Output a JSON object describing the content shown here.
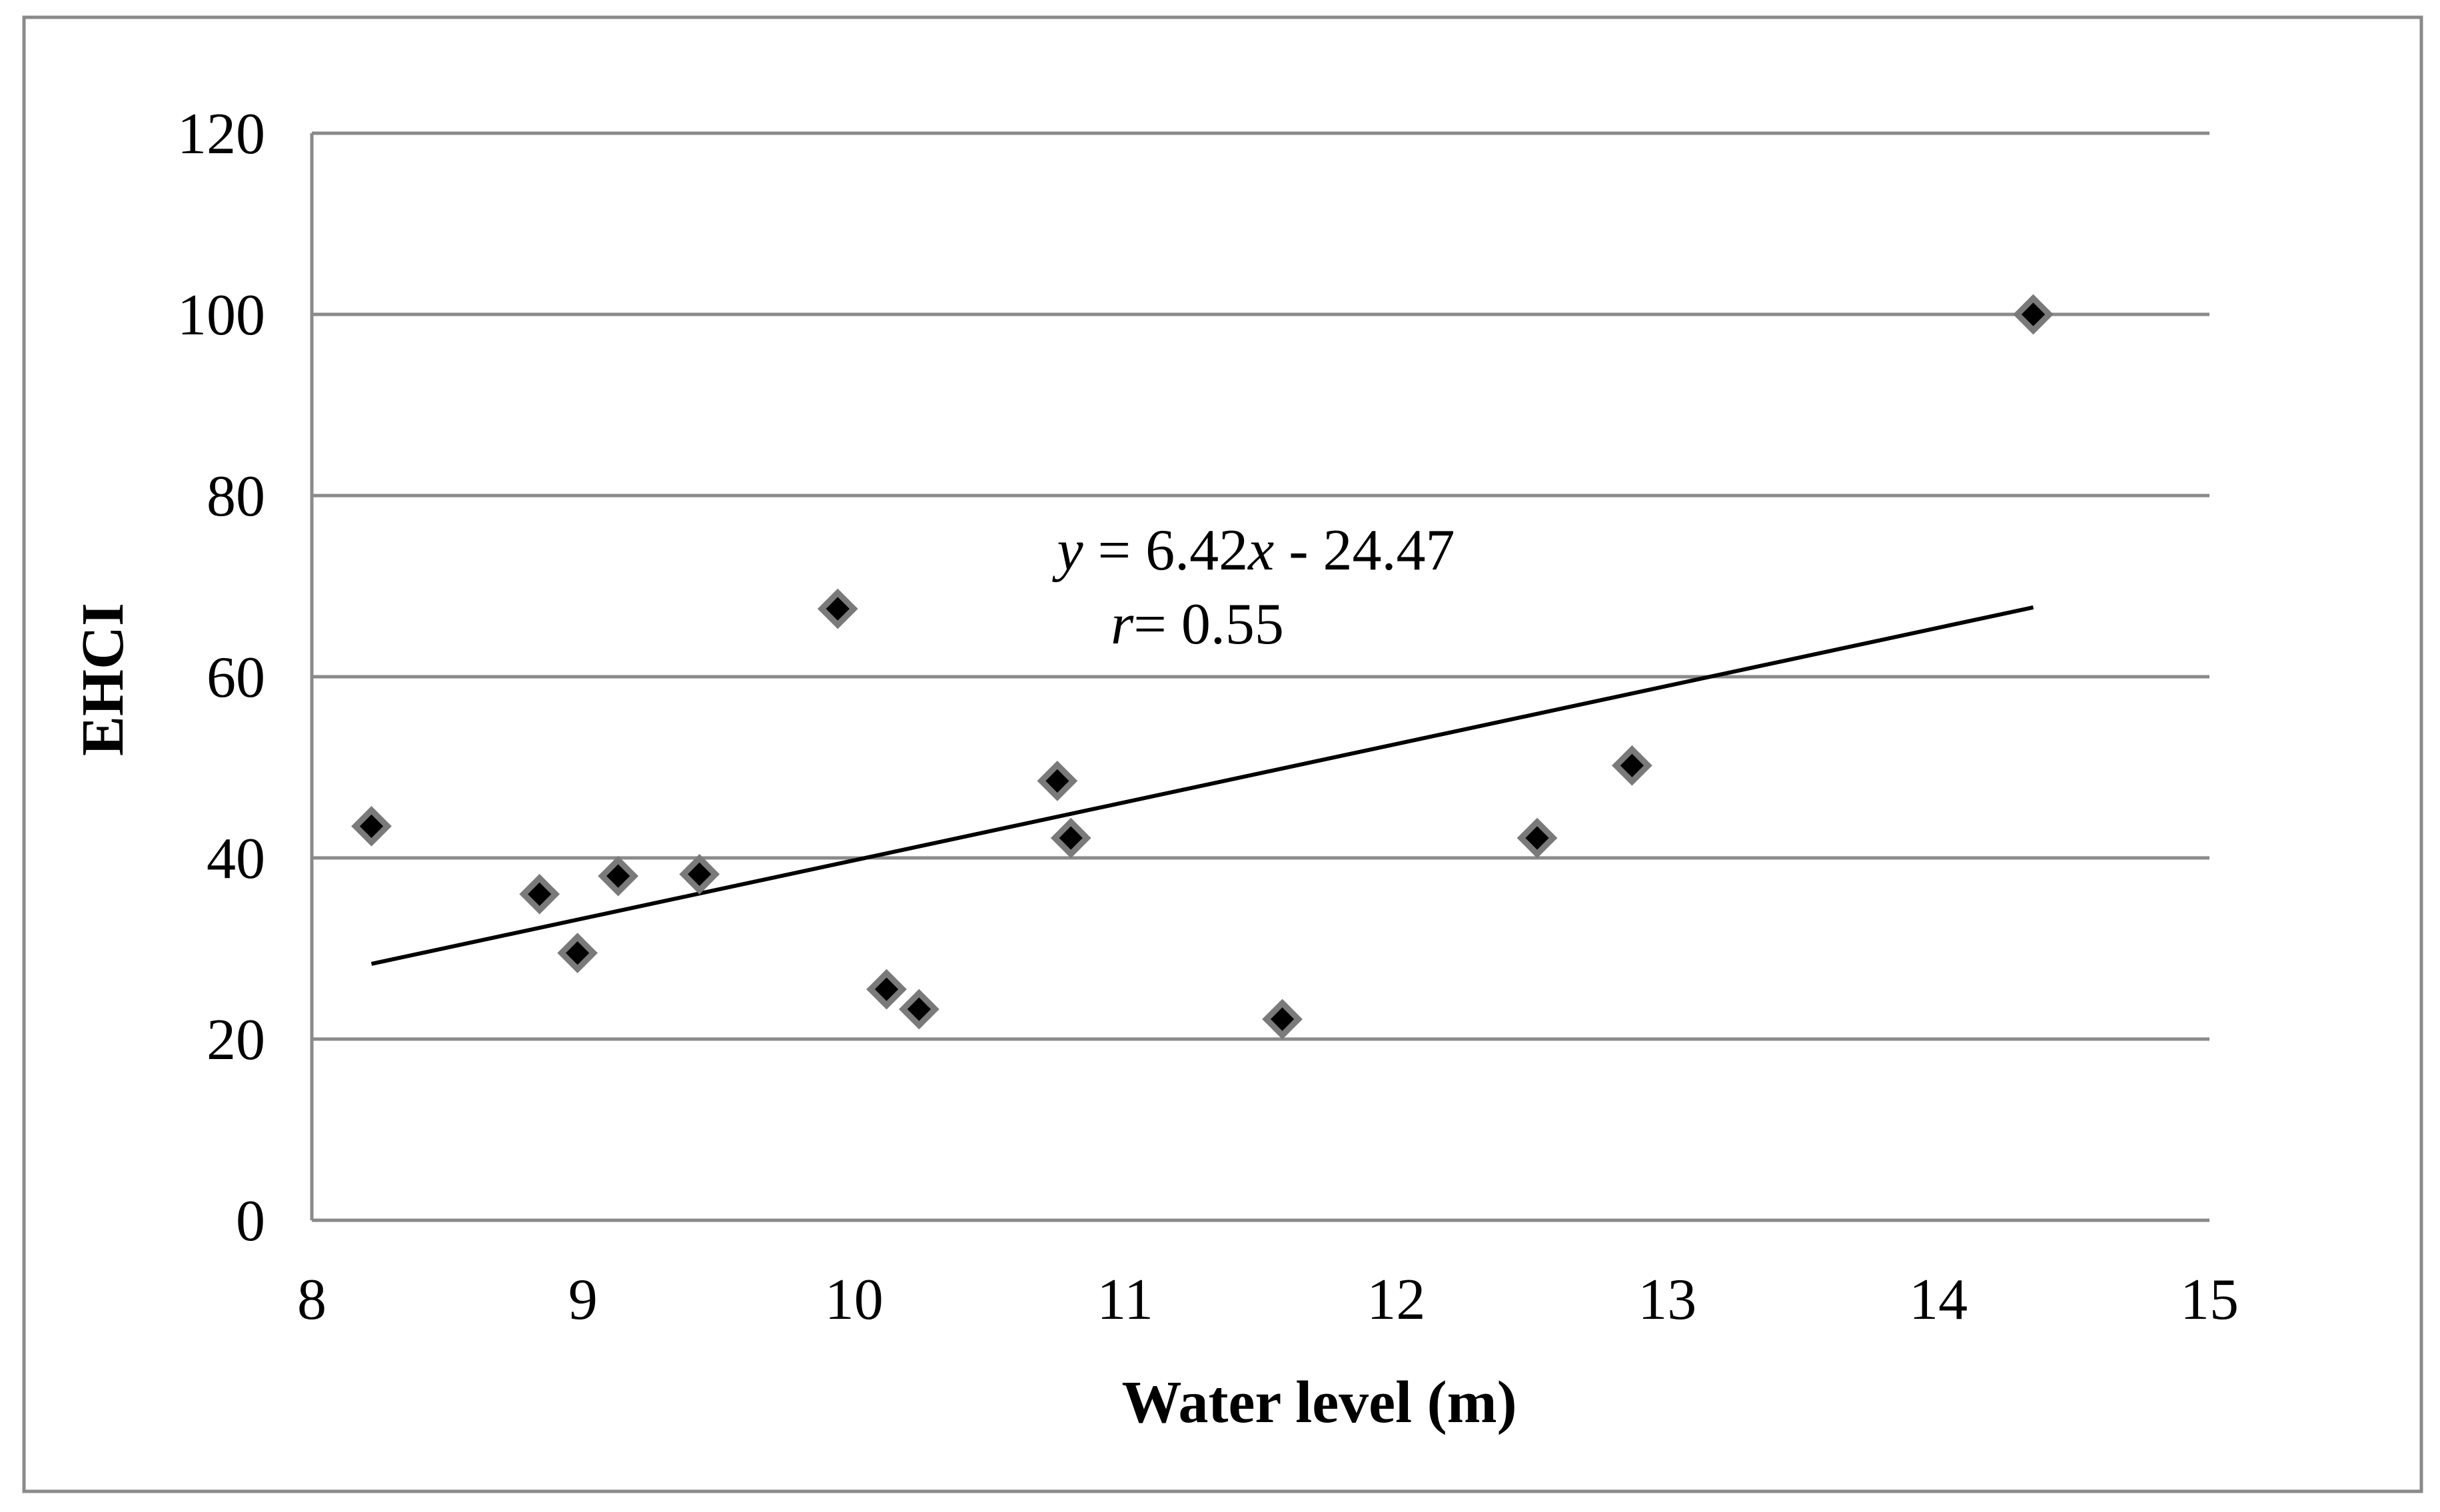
{
  "chart_data": {
    "type": "scatter",
    "title": "",
    "xlabel": "Water level (m)",
    "ylabel": "EHCI",
    "xlim": [
      8,
      15
    ],
    "ylim": [
      0,
      120
    ],
    "xticks": [
      8,
      9,
      10,
      11,
      12,
      13,
      14,
      15
    ],
    "yticks": [
      0,
      20,
      40,
      60,
      80,
      100,
      120
    ],
    "grid": "horizontal",
    "legend": "none",
    "series": [
      {
        "name": "EHCI",
        "marker": "diamond",
        "color": "#000000",
        "points": [
          {
            "x": 8.22,
            "y": 43.5
          },
          {
            "x": 8.84,
            "y": 36.0
          },
          {
            "x": 8.98,
            "y": 29.5
          },
          {
            "x": 9.13,
            "y": 38.0
          },
          {
            "x": 9.43,
            "y": 38.2
          },
          {
            "x": 9.94,
            "y": 67.5
          },
          {
            "x": 10.12,
            "y": 25.5
          },
          {
            "x": 10.24,
            "y": 23.3
          },
          {
            "x": 10.75,
            "y": 48.5
          },
          {
            "x": 10.8,
            "y": 42.2
          },
          {
            "x": 11.58,
            "y": 22.2
          },
          {
            "x": 12.52,
            "y": 42.2
          },
          {
            "x": 12.87,
            "y": 50.2
          },
          {
            "x": 14.35,
            "y": 100.0
          }
        ]
      }
    ],
    "trendline": {
      "slope": 6.42,
      "intercept": -24.47,
      "x_range": [
        8.22,
        14.35
      ]
    },
    "annotations": {
      "equation": {
        "y_var": "y",
        "middle": " = 6.42",
        "x_var": "x",
        "tail": " - 24.47"
      },
      "correlation": {
        "r_var": "r",
        "tail": "= 0.55"
      }
    }
  }
}
